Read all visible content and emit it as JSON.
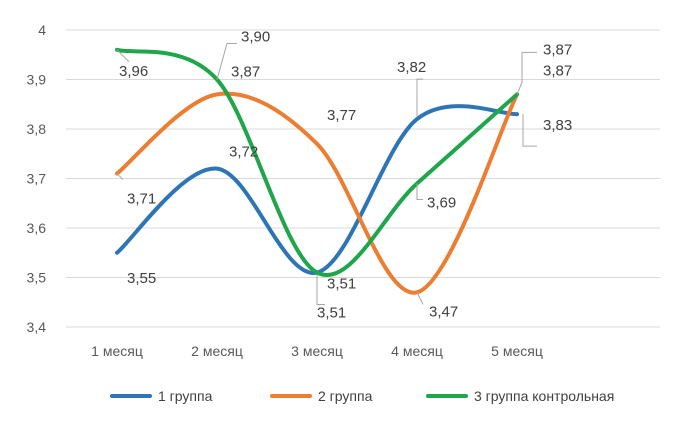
{
  "chart_data": {
    "type": "line",
    "smooth": true,
    "categories": [
      "1 месяц",
      "2 месяц",
      "3 месяц",
      "4 месяц",
      "5 месяц"
    ],
    "ylim": [
      3.4,
      4.0
    ],
    "yticks": [
      "3,4",
      "3,5",
      "3,6",
      "3,7",
      "3,8",
      "3,9",
      "4"
    ],
    "grid": true,
    "legend": "bottom",
    "series": [
      {
        "name": "1 группа",
        "color": "#2e75b6",
        "values": [
          3.55,
          3.72,
          3.51,
          3.82,
          3.83
        ],
        "labels": [
          "3,55",
          "3,72",
          "3,51",
          "3,82",
          "3,83"
        ]
      },
      {
        "name": "2 группа",
        "color": "#ed7d31",
        "values": [
          3.71,
          3.87,
          3.77,
          3.47,
          3.87
        ],
        "labels": [
          "3,71",
          "3,87",
          "3,77",
          "3,47",
          "3,87"
        ]
      },
      {
        "name": "3 группа контрольная",
        "color": "#1fa64a",
        "values": [
          3.96,
          3.9,
          3.51,
          3.69,
          3.87
        ],
        "labels": [
          "3,96",
          "3,90",
          "3,51",
          "3,69",
          "3,87"
        ]
      }
    ]
  }
}
